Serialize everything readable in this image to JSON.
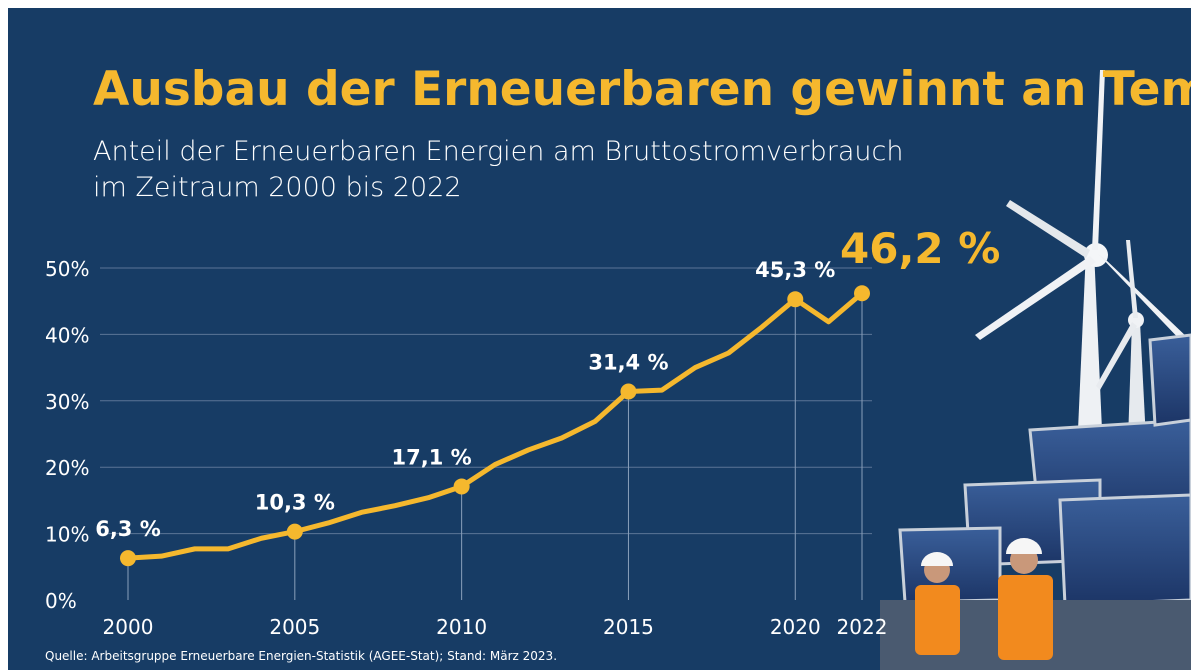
{
  "chart_data": {
    "type": "line",
    "title": "Ausbau der Erneuerbaren gewinnt an Tempo",
    "subtitle": [
      "Anteil der Erneuerbaren Energien am Bruttostromverbrauch",
      "im Zeitraum 2000 bis 2022"
    ],
    "source": "Quelle: Arbeitsgruppe Erneuerbare Energien-Statistik (AGEE-Stat); Stand: März 2023.",
    "x": [
      2000,
      2001,
      2002,
      2003,
      2004,
      2005,
      2006,
      2007,
      2008,
      2009,
      2010,
      2011,
      2012,
      2013,
      2014,
      2015,
      2016,
      2017,
      2018,
      2019,
      2020,
      2021,
      2022
    ],
    "series": [
      {
        "color": "#f5b82e",
        "values": [
          6.3,
          6.6,
          7.7,
          7.7,
          9.3,
          10.3,
          11.6,
          13.2,
          14.2,
          15.4,
          17.1,
          20.4,
          22.6,
          24.4,
          26.9,
          31.4,
          31.6,
          35.0,
          37.2,
          41.1,
          45.3,
          41.9,
          46.2
        ],
        "value_labels": [
          "6,3 %",
          null,
          null,
          null,
          null,
          "10,3 %",
          null,
          null,
          null,
          null,
          "17,1 %",
          null,
          null,
          null,
          null,
          "31,4 %",
          null,
          null,
          null,
          null,
          "45,3 %",
          null,
          "46,2 %"
        ]
      }
    ],
    "xlim": [
      2000,
      2022
    ],
    "xticks": [
      2000,
      2005,
      2010,
      2015,
      2020,
      2022
    ],
    "ylim": [
      0,
      50
    ],
    "yticks": [
      {
        "value": 0,
        "label": "0%"
      },
      {
        "value": 10,
        "label": "10%"
      },
      {
        "value": 20,
        "label": "20%"
      },
      {
        "value": 30,
        "label": "30%"
      },
      {
        "value": 40,
        "label": "40%"
      },
      {
        "value": 50,
        "label": "50%"
      }
    ],
    "grid": true
  }
}
